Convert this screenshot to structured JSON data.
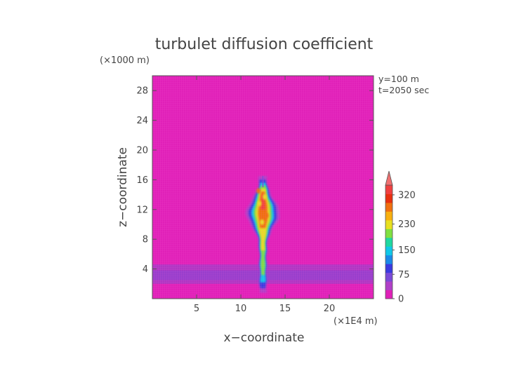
{
  "chart_data": {
    "type": "heatmap",
    "title": "turbulet diffusion coefficient",
    "xlabel": "x−coordinate",
    "ylabel": "z−coordinate",
    "x_unit": "(×1E4 m)",
    "y_unit": "(×1000 m)",
    "annotations": [
      "y=100 m",
      "t=2050 sec"
    ],
    "x_ticks": [
      5,
      10,
      15,
      20
    ],
    "y_ticks": [
      4,
      8,
      12,
      16,
      20,
      24,
      28
    ],
    "xlim": [
      0,
      25
    ],
    "ylim": [
      0,
      30
    ],
    "colorbar": {
      "ticks": [
        0,
        75,
        150,
        230,
        320
      ],
      "range": [
        0,
        350
      ],
      "extend": "max",
      "colors": [
        "#e020b8",
        "#b040c8",
        "#7a4ad8",
        "#3a3ae0",
        "#1a8ae8",
        "#10c8e8",
        "#20d8a0",
        "#80e040",
        "#e8e020",
        "#f8b010",
        "#f07010",
        "#e83010",
        "#f04040"
      ]
    },
    "background_value": 0,
    "low_band": {
      "z_range": [
        2.0,
        4.6
      ],
      "value": 25
    },
    "plume": {
      "x_center": 12.5,
      "z_base": 0.8,
      "z_top": 16.5,
      "peak_value": 320,
      "core_z_range": [
        9.0,
        15.0
      ]
    }
  }
}
